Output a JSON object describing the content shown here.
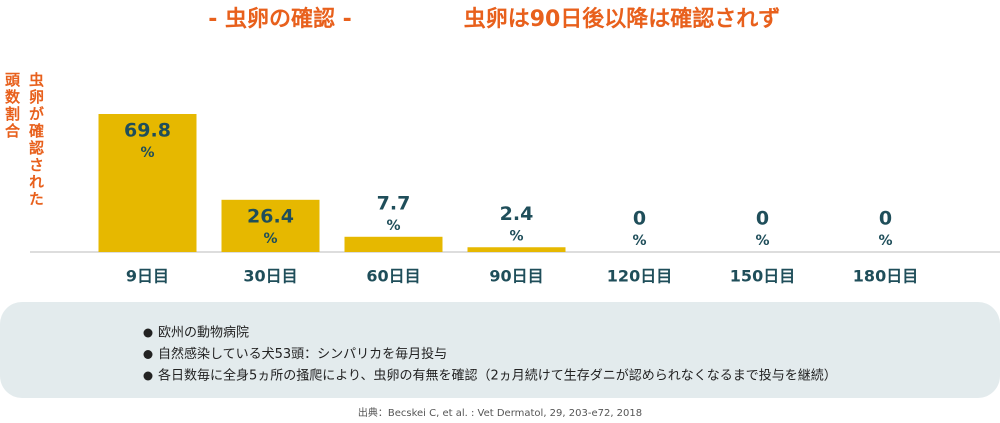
{
  "chart_data": {
    "type": "bar",
    "title": "- 虫卵の確認 -",
    "subtitle": "虫卵は90日後以降は確認されず",
    "y_label": [
      "虫卵が確認された",
      "頭数割合"
    ],
    "categories": [
      "9日目",
      "30日目",
      "60日目",
      "90日目",
      "120日目",
      "150日目",
      "180日目"
    ],
    "values": [
      69.8,
      26.4,
      7.7,
      2.4,
      0,
      0,
      0
    ],
    "value_unit": "%",
    "color": "#e6b800",
    "ylim": [
      0,
      70
    ]
  },
  "notes": [
    "欧州の動物病院",
    "自然感染している犬53頭：シンパリカを毎月投与",
    "各日数毎に全身5ヵ所の掻爬により、虫卵の有無を確認（2ヵ月続けて生存ダニが認められなくなるまで投与を継続）"
  ],
  "source": "出典：Becskei C, et al. : Vet Dermatol, 29, 203-e72, 2018"
}
